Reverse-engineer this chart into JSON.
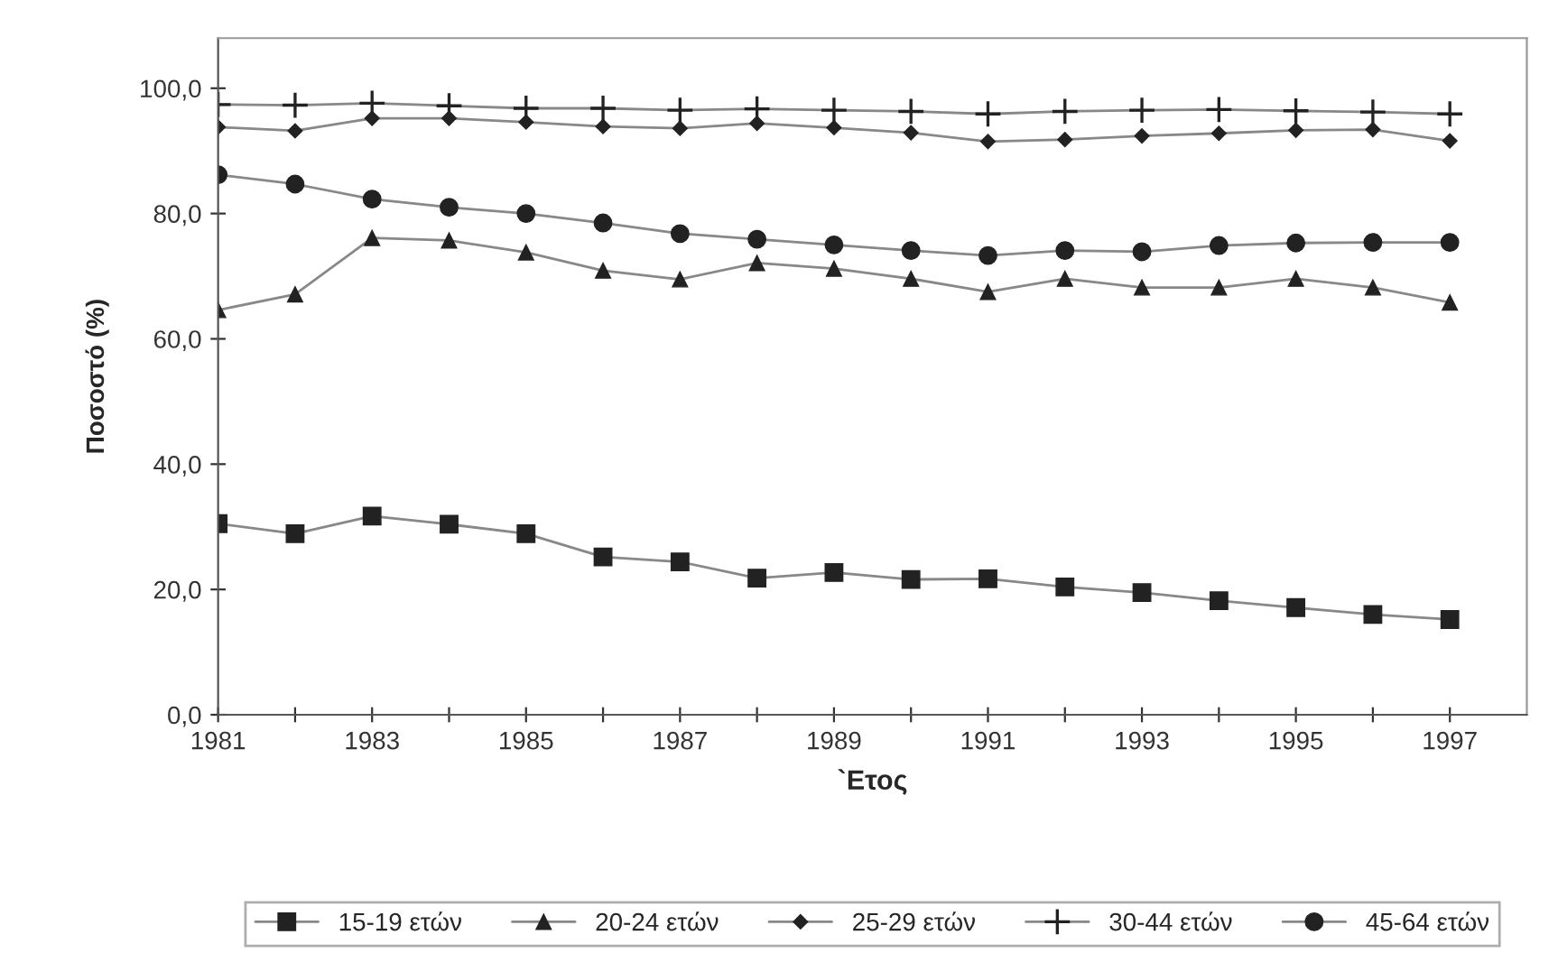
{
  "chart_data": {
    "type": "line",
    "xlabel": "`Ετος",
    "ylabel": "Ποσοστό (%)",
    "x": [
      1981,
      1982,
      1983,
      1984,
      1985,
      1986,
      1987,
      1988,
      1989,
      1990,
      1991,
      1992,
      1993,
      1994,
      1995,
      1996,
      1997
    ],
    "series": [
      {
        "name": "15-19 ετών",
        "color": "#222222",
        "marker": "square",
        "values": [
          30.5,
          28.9,
          31.7,
          30.4,
          28.9,
          25.2,
          24.4,
          21.8,
          22.7,
          21.6,
          21.7,
          20.4,
          19.5,
          18.2,
          17.1,
          16.0,
          15.2
        ]
      },
      {
        "name": "20-24 ετών",
        "color": "#222222",
        "marker": "triangle",
        "values": [
          64.6,
          67.1,
          76.1,
          75.7,
          73.8,
          70.9,
          69.5,
          72.1,
          71.2,
          69.6,
          67.5,
          69.6,
          68.2,
          68.2,
          69.6,
          68.2,
          65.8
        ]
      },
      {
        "name": "25-29 ετών",
        "color": "#222222",
        "marker": "diamond",
        "values": [
          93.8,
          93.2,
          95.2,
          95.2,
          94.6,
          93.9,
          93.6,
          94.4,
          93.7,
          92.9,
          91.5,
          91.8,
          92.4,
          92.8,
          93.3,
          93.4,
          91.6
        ]
      },
      {
        "name": "30-44 ετών",
        "color": "#222222",
        "marker": "cross",
        "values": [
          97.4,
          97.3,
          97.6,
          97.2,
          96.8,
          96.8,
          96.5,
          96.7,
          96.5,
          96.3,
          95.9,
          96.3,
          96.5,
          96.6,
          96.4,
          96.2,
          95.9
        ]
      },
      {
        "name": "45-64 ετών",
        "color": "#222222",
        "marker": "circle",
        "values": [
          86.2,
          84.7,
          82.3,
          81.0,
          80.0,
          78.5,
          76.8,
          75.9,
          75.0,
          74.1,
          73.3,
          74.1,
          73.9,
          74.9,
          75.3,
          75.4,
          75.4
        ]
      }
    ],
    "xlim": [
      1981,
      1998
    ],
    "xticks": [
      1981,
      {
        "value": 1982,
        "label": null
      },
      1983,
      {
        "value": 1984,
        "label": null
      },
      1985,
      {
        "value": 1986,
        "label": null
      },
      1987,
      {
        "value": 1988,
        "label": null
      },
      1989,
      {
        "value": 1990,
        "label": null
      },
      1991,
      {
        "value": 1992,
        "label": null
      },
      1993,
      {
        "value": 1994,
        "label": null
      },
      1995,
      {
        "value": 1996,
        "label": null
      },
      1997
    ],
    "ylim": [
      0,
      108
    ],
    "yticks": [
      {
        "value": 0,
        "label": "0,0"
      },
      {
        "value": 20,
        "label": "20,0"
      },
      {
        "value": 40,
        "label": "40,0"
      },
      {
        "value": 60,
        "label": "60,0"
      },
      {
        "value": 80,
        "label": "80,0"
      },
      {
        "value": 100,
        "label": "100,0"
      }
    ],
    "grid": false,
    "legend": "bottom",
    "line_style": "solid"
  }
}
